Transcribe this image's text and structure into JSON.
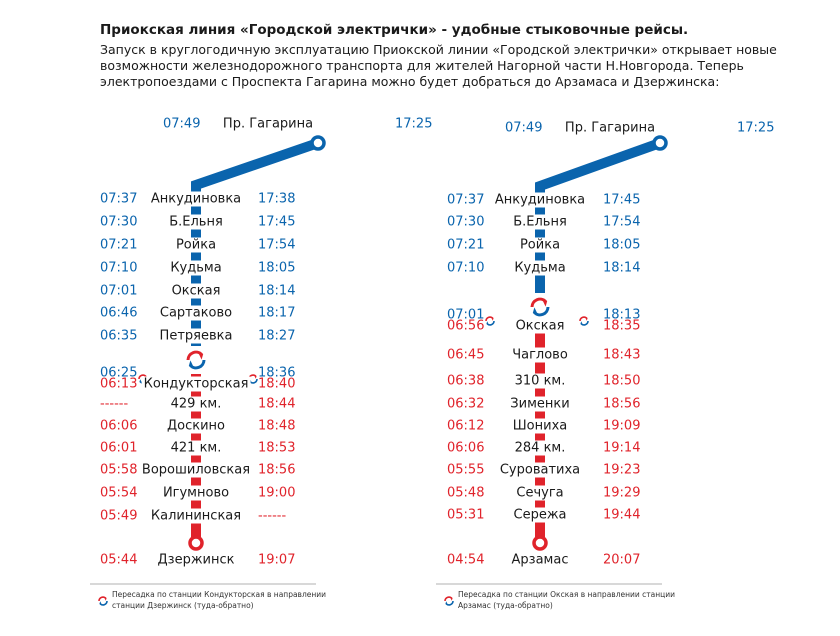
{
  "header": {
    "title": "Приокская линия «Городской электрички» - удобные стыковочные рейсы.",
    "lines": [
      "Запуск в круглогодичную эксплуатацию Приокской линии «Городской электрички» открывает новые",
      "возможности железнодорожного транспорта для жителей Нагорной части Н.Новгорода. Теперь",
      "электропоездами  с Проспекта Гагарина можно будет добраться до Арзамаса и Дзержинска:"
    ]
  },
  "routes": [
    {
      "start": {
        "left": "07:49",
        "name": "Пр. Гагарина",
        "right": "17:25"
      },
      "stations": [
        {
          "left": "07:37",
          "name": "Анкудиновка",
          "right": "17:38",
          "color": "blue"
        },
        {
          "left": "07:30",
          "name": "Б.Ельня",
          "right": "17:45",
          "color": "blue"
        },
        {
          "left": "07:21",
          "name": "Ройка",
          "right": "17:54",
          "color": "blue"
        },
        {
          "left": "07:10",
          "name": "Кудьма",
          "right": "18:05",
          "color": "blue"
        },
        {
          "left": "07:01",
          "name": "Окская",
          "right": "18:14",
          "color": "blue"
        },
        {
          "left": "06:46",
          "name": "Сартаково",
          "right": "18:17",
          "color": "blue"
        },
        {
          "left": "06:35",
          "name": "Петряевка",
          "right": "18:27",
          "color": "blue"
        },
        {
          "transfer": true,
          "left_in": "06:25",
          "left_out": "06:13",
          "name": "Кондукторская",
          "right_in": "18:36",
          "right_out": "18:40"
        },
        {
          "left": "------",
          "name": "429 км.",
          "right": "18:44",
          "color": "red"
        },
        {
          "left": "06:06",
          "name": "Доскино",
          "right": "18:48",
          "color": "red"
        },
        {
          "left": "06:01",
          "name": "421 км.",
          "right": "18:53",
          "color": "red"
        },
        {
          "left": "05:58",
          "name": "Ворошиловская",
          "right": "18:56",
          "color": "red"
        },
        {
          "left": "05:54",
          "name": "Игумново",
          "right": "19:00",
          "color": "red"
        },
        {
          "left": "05:49",
          "name": "Калининская",
          "right": "------",
          "color": "red"
        }
      ],
      "end": {
        "left": "05:44",
        "name": "Дзержинск",
        "right": "19:07"
      },
      "footnote": [
        "Пересадка по станции Кондукторская в направлении",
        "станции Дзержинск  (туда-обратно)"
      ]
    },
    {
      "start": {
        "left": "07:49",
        "name": "Пр. Гагарина",
        "right": "17:25"
      },
      "stations": [
        {
          "left": "07:37",
          "name": "Анкудиновка",
          "right": "17:45",
          "color": "blue"
        },
        {
          "left": "07:30",
          "name": "Б.Ельня",
          "right": "17:54",
          "color": "blue"
        },
        {
          "left": "07:21",
          "name": "Ройка",
          "right": "18:05",
          "color": "blue"
        },
        {
          "left": "07:10",
          "name": "Кудьма",
          "right": "18:14",
          "color": "blue"
        },
        {
          "transfer": true,
          "left_in": "07:01",
          "left_out": "06:56",
          "name": "Окская",
          "right_in": "18:13",
          "right_out": "18:35"
        },
        {
          "left": "06:45",
          "name": "Чаглово",
          "right": "18:43",
          "color": "red"
        },
        {
          "left": "06:38",
          "name": "310 км.",
          "right": "18:50",
          "color": "red"
        },
        {
          "left": "06:32",
          "name": "Зименки",
          "right": "18:56",
          "color": "red"
        },
        {
          "left": "06:12",
          "name": "Шониха",
          "right": "19:09",
          "color": "red"
        },
        {
          "left": "06:06",
          "name": "284 км.",
          "right": "19:14",
          "color": "red"
        },
        {
          "left": "05:55",
          "name": "Суроватиха",
          "right": "19:23",
          "color": "red"
        },
        {
          "left": "05:48",
          "name": "Сечуга",
          "right": "19:29",
          "color": "red"
        },
        {
          "left": "05:31",
          "name": "Сережа",
          "right": "19:44",
          "color": "red"
        }
      ],
      "end": {
        "left": "04:54",
        "name": "Арзамас",
        "right": "20:07"
      },
      "footnote": [
        "Пересадка по станции Окская в направлении станции",
        "Арзамас  (туда-обратно)"
      ]
    }
  ]
}
